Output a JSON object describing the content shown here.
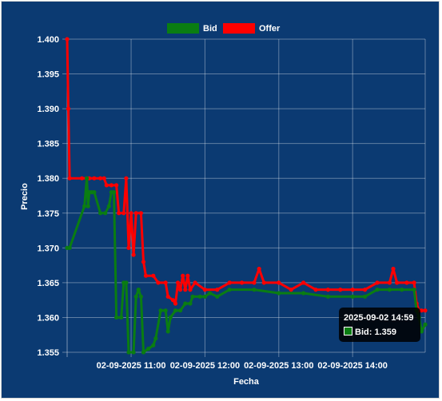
{
  "chart_data": {
    "type": "line",
    "xlabel": "Fecha",
    "ylabel": "Precio",
    "ylim": [
      1.355,
      1.4
    ],
    "yticks": [
      "1.400",
      "1.395",
      "1.390",
      "1.385",
      "1.380",
      "1.375",
      "1.370",
      "1.365",
      "1.360",
      "1.355"
    ],
    "x_range": [
      "2025-09-02 10:08",
      "2025-09-02 14:59"
    ],
    "x_ticks": [
      {
        "time": "2025-09-02 11:00",
        "label": "02-09-2025 11:00"
      },
      {
        "time": "2025-09-02 12:00",
        "label": "02-09-2025 12:00"
      },
      {
        "time": "2025-09-02 13:00",
        "label": "02-09-2025 13:00"
      },
      {
        "time": "2025-09-02 14:00",
        "label": "02-09-2025 14:00"
      }
    ],
    "grid": true,
    "legend_position": "top",
    "series": [
      {
        "name": "Bid",
        "color": "#0a7d12",
        "points": [
          [
            "2025-09-02 10:08",
            1.37
          ],
          [
            "2025-09-02 10:10",
            1.37
          ],
          [
            "2025-09-02 10:22",
            1.376
          ],
          [
            "2025-09-02 10:24",
            1.38
          ],
          [
            "2025-09-02 10:25",
            1.376
          ],
          [
            "2025-09-02 10:26",
            1.378
          ],
          [
            "2025-09-02 10:28",
            1.378
          ],
          [
            "2025-09-02 10:30",
            1.378
          ],
          [
            "2025-09-02 10:35",
            1.375
          ],
          [
            "2025-09-02 10:39",
            1.375
          ],
          [
            "2025-09-02 10:42",
            1.376
          ],
          [
            "2025-09-02 10:44",
            1.378
          ],
          [
            "2025-09-02 10:46",
            1.378
          ],
          [
            "2025-09-02 10:48",
            1.36
          ],
          [
            "2025-09-02 10:52",
            1.36
          ],
          [
            "2025-09-02 10:54",
            1.365
          ],
          [
            "2025-09-02 10:56",
            1.365
          ],
          [
            "2025-09-02 10:58",
            1.355
          ],
          [
            "2025-09-02 11:02",
            1.355
          ],
          [
            "2025-09-02 11:04",
            1.363
          ],
          [
            "2025-09-02 11:06",
            1.364
          ],
          [
            "2025-09-02 11:08",
            1.363
          ],
          [
            "2025-09-02 11:10",
            1.355
          ],
          [
            "2025-09-02 11:14",
            1.3555
          ],
          [
            "2025-09-02 11:18",
            1.356
          ],
          [
            "2025-09-02 11:20",
            1.357
          ],
          [
            "2025-09-02 11:24",
            1.361
          ],
          [
            "2025-09-02 11:28",
            1.361
          ],
          [
            "2025-09-02 11:30",
            1.358
          ],
          [
            "2025-09-02 11:32",
            1.36
          ],
          [
            "2025-09-02 11:36",
            1.361
          ],
          [
            "2025-09-02 11:40",
            1.361
          ],
          [
            "2025-09-02 11:44",
            1.362
          ],
          [
            "2025-09-02 11:48",
            1.362
          ],
          [
            "2025-09-02 11:50",
            1.363
          ],
          [
            "2025-09-02 11:56",
            1.363
          ],
          [
            "2025-09-02 12:00",
            1.363
          ],
          [
            "2025-09-02 12:04",
            1.3635
          ],
          [
            "2025-09-02 12:10",
            1.363
          ],
          [
            "2025-09-02 12:20",
            1.364
          ],
          [
            "2025-09-02 12:40",
            1.364
          ],
          [
            "2025-09-02 13:00",
            1.3635
          ],
          [
            "2025-09-02 13:20",
            1.3635
          ],
          [
            "2025-09-02 13:40",
            1.363
          ],
          [
            "2025-09-02 14:00",
            1.363
          ],
          [
            "2025-09-02 14:10",
            1.363
          ],
          [
            "2025-09-02 14:20",
            1.364
          ],
          [
            "2025-09-02 14:30",
            1.364
          ],
          [
            "2025-09-02 14:40",
            1.364
          ],
          [
            "2025-09-02 14:50",
            1.364
          ],
          [
            "2025-09-02 14:52",
            1.361
          ],
          [
            "2025-09-02 14:54",
            1.36
          ],
          [
            "2025-09-02 14:56",
            1.358
          ],
          [
            "2025-09-02 14:59",
            1.359
          ]
        ]
      },
      {
        "name": "Offer",
        "color": "#ff0000",
        "points": [
          [
            "2025-09-02 10:08",
            1.4
          ],
          [
            "2025-09-02 10:09",
            1.39
          ],
          [
            "2025-09-02 10:10",
            1.38
          ],
          [
            "2025-09-02 10:20",
            1.38
          ],
          [
            "2025-09-02 10:24",
            1.38
          ],
          [
            "2025-09-02 10:26",
            1.38
          ],
          [
            "2025-09-02 10:30",
            1.38
          ],
          [
            "2025-09-02 10:35",
            1.38
          ],
          [
            "2025-09-02 10:38",
            1.38
          ],
          [
            "2025-09-02 10:40",
            1.379
          ],
          [
            "2025-09-02 10:44",
            1.379
          ],
          [
            "2025-09-02 10:48",
            1.379
          ],
          [
            "2025-09-02 10:50",
            1.375
          ],
          [
            "2025-09-02 10:54",
            1.375
          ],
          [
            "2025-09-02 10:56",
            1.38
          ],
          [
            "2025-09-02 10:58",
            1.37
          ],
          [
            "2025-09-02 11:00",
            1.375
          ],
          [
            "2025-09-02 11:02",
            1.369
          ],
          [
            "2025-09-02 11:04",
            1.375
          ],
          [
            "2025-09-02 11:08",
            1.375
          ],
          [
            "2025-09-02 11:10",
            1.368
          ],
          [
            "2025-09-02 11:12",
            1.366
          ],
          [
            "2025-09-02 11:18",
            1.366
          ],
          [
            "2025-09-02 11:22",
            1.365
          ],
          [
            "2025-09-02 11:28",
            1.365
          ],
          [
            "2025-09-02 11:30",
            1.363
          ],
          [
            "2025-09-02 11:34",
            1.3625
          ],
          [
            "2025-09-02 11:36",
            1.362
          ],
          [
            "2025-09-02 11:38",
            1.365
          ],
          [
            "2025-09-02 11:40",
            1.364
          ],
          [
            "2025-09-02 11:42",
            1.366
          ],
          [
            "2025-09-02 11:44",
            1.364
          ],
          [
            "2025-09-02 11:46",
            1.366
          ],
          [
            "2025-09-02 11:48",
            1.364
          ],
          [
            "2025-09-02 11:52",
            1.365
          ],
          [
            "2025-09-02 12:00",
            1.364
          ],
          [
            "2025-09-02 12:10",
            1.364
          ],
          [
            "2025-09-02 12:20",
            1.365
          ],
          [
            "2025-09-02 12:30",
            1.365
          ],
          [
            "2025-09-02 12:40",
            1.365
          ],
          [
            "2025-09-02 12:44",
            1.367
          ],
          [
            "2025-09-02 12:48",
            1.365
          ],
          [
            "2025-09-02 13:00",
            1.365
          ],
          [
            "2025-09-02 13:10",
            1.364
          ],
          [
            "2025-09-02 13:20",
            1.365
          ],
          [
            "2025-09-02 13:30",
            1.364
          ],
          [
            "2025-09-02 13:40",
            1.364
          ],
          [
            "2025-09-02 13:50",
            1.364
          ],
          [
            "2025-09-02 14:00",
            1.364
          ],
          [
            "2025-09-02 14:10",
            1.364
          ],
          [
            "2025-09-02 14:20",
            1.365
          ],
          [
            "2025-09-02 14:30",
            1.365
          ],
          [
            "2025-09-02 14:33",
            1.367
          ],
          [
            "2025-09-02 14:36",
            1.365
          ],
          [
            "2025-09-02 14:44",
            1.365
          ],
          [
            "2025-09-02 14:50",
            1.365
          ],
          [
            "2025-09-02 14:52",
            1.362
          ],
          [
            "2025-09-02 14:54",
            1.361
          ],
          [
            "2025-09-02 14:56",
            1.361
          ],
          [
            "2025-09-02 14:59",
            1.361
          ]
        ]
      }
    ],
    "tooltip": {
      "title": "2025-09-02 14:59",
      "body": "Bid: 1.359",
      "color": "#0a7d12"
    }
  }
}
